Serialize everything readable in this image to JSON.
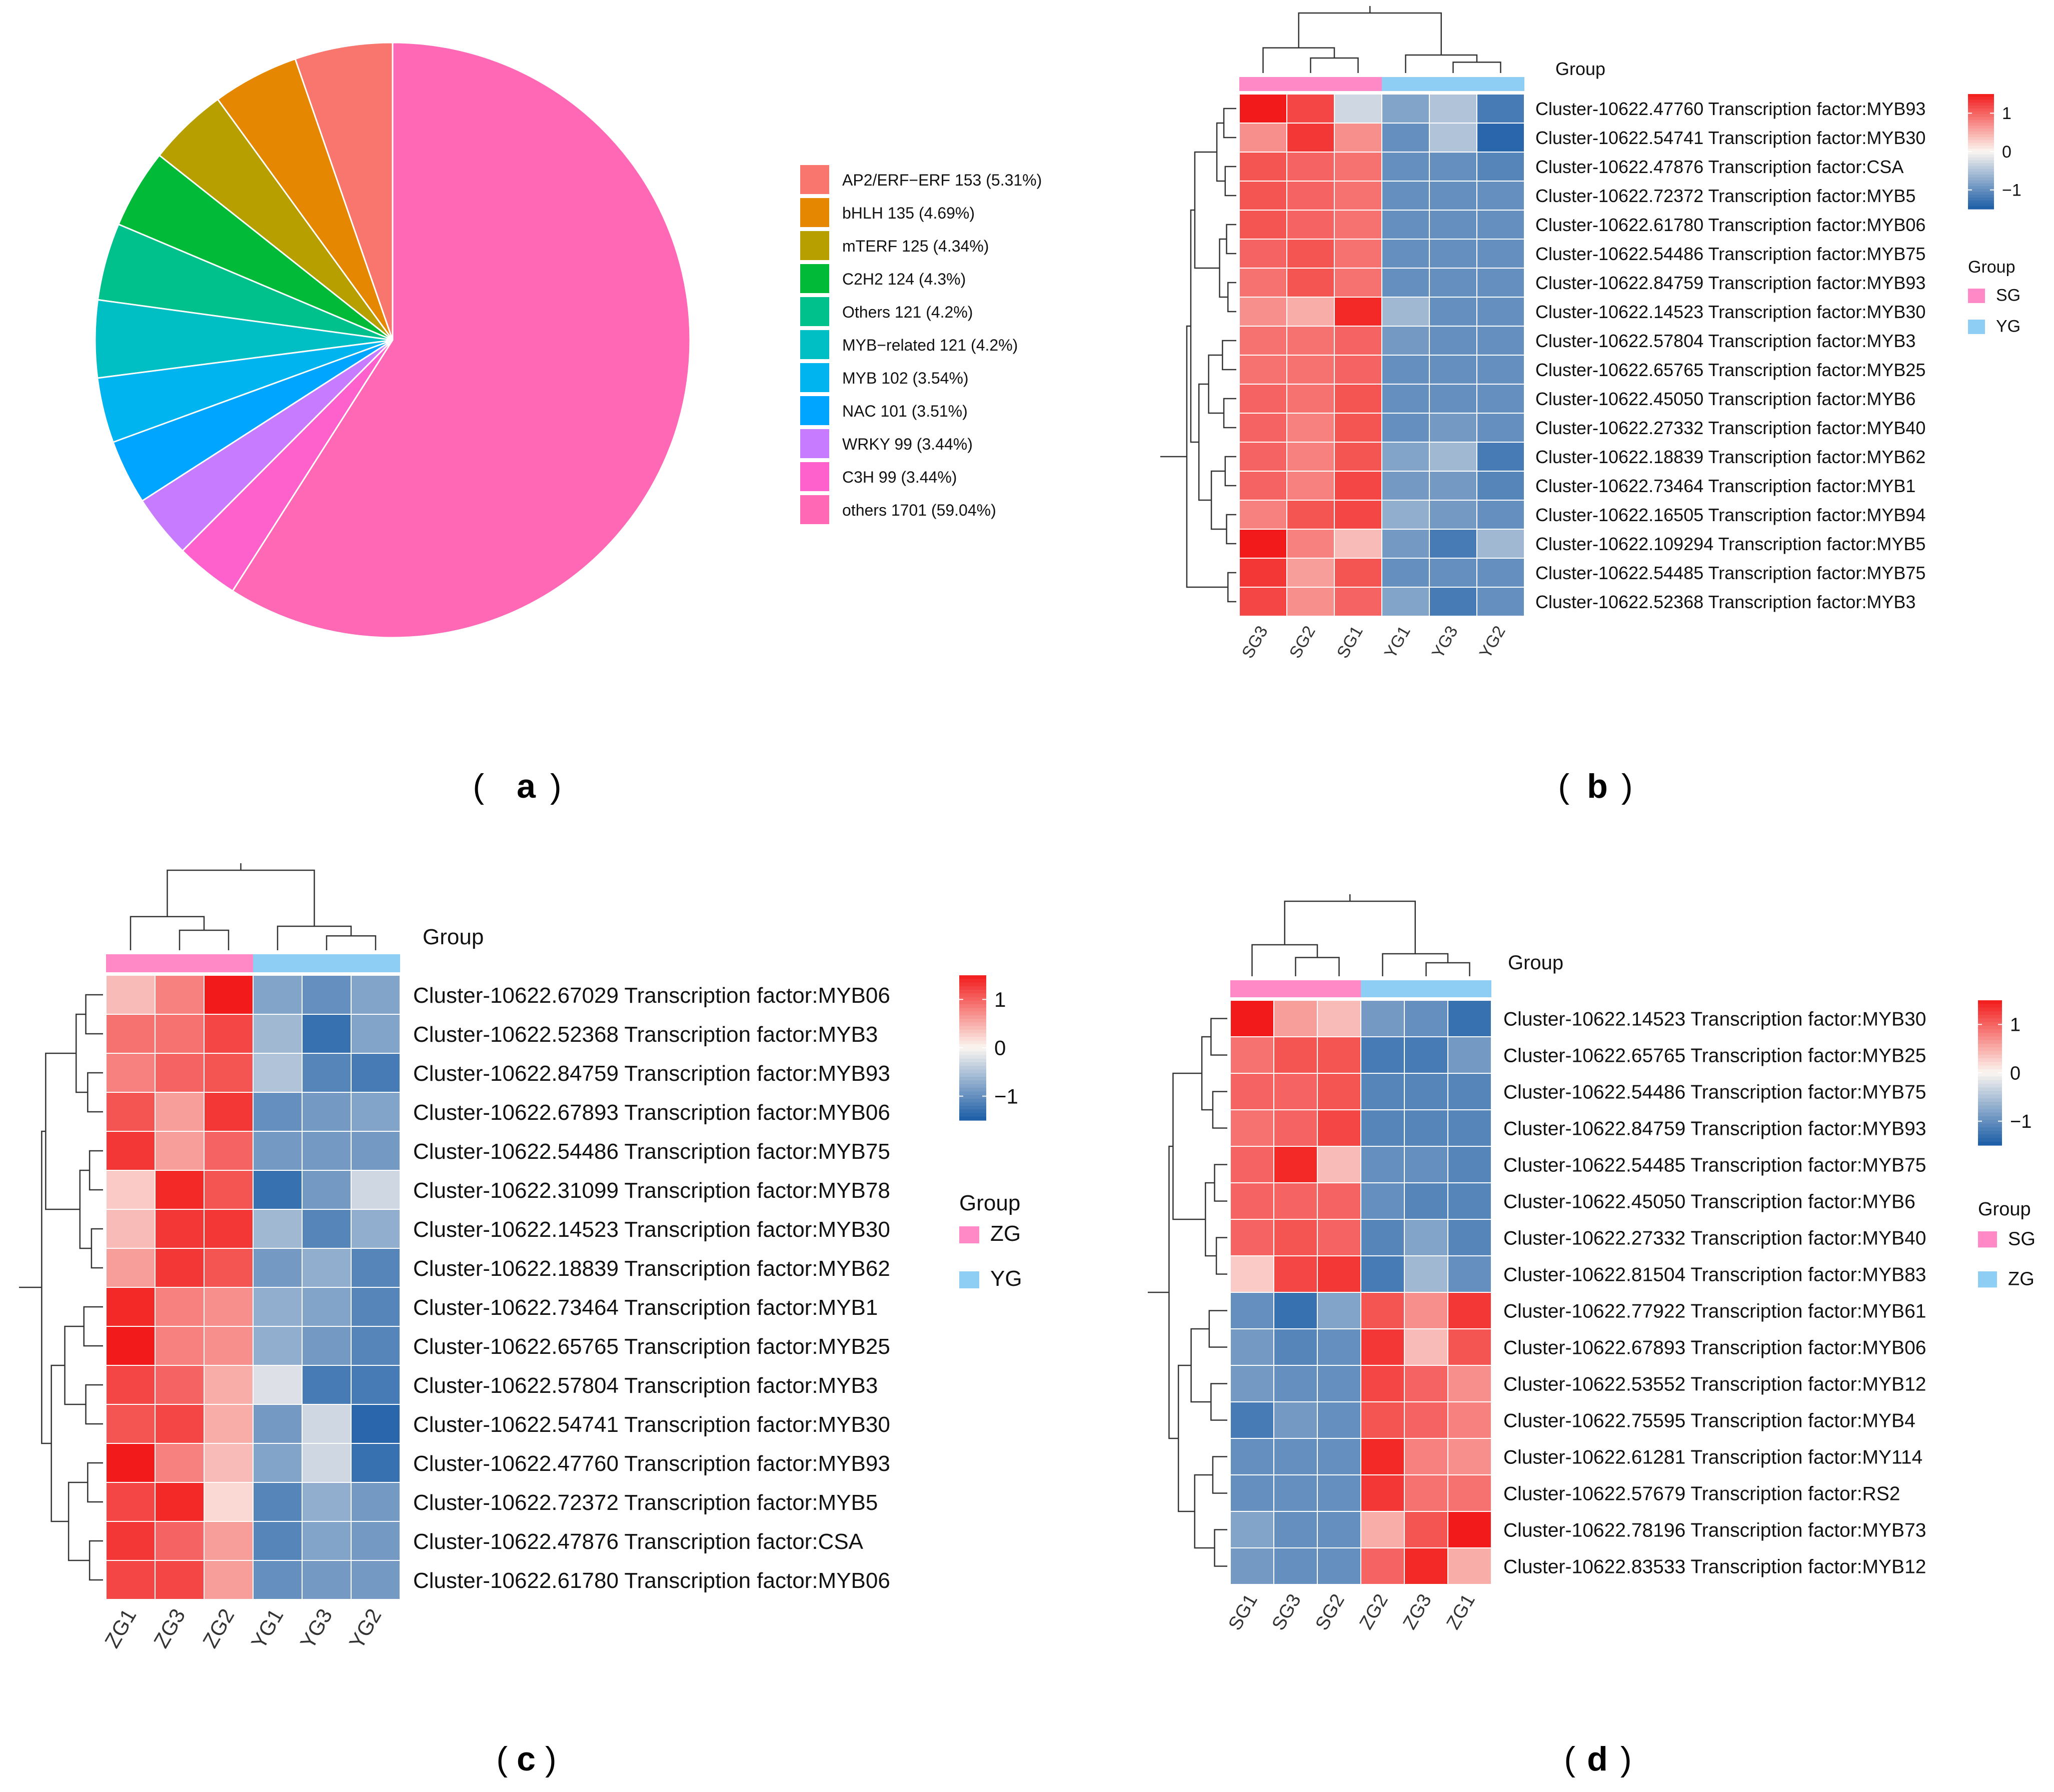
{
  "panels": {
    "a": {
      "label": "a"
    },
    "b": {
      "label": "b"
    },
    "c": {
      "label": "c"
    },
    "d": {
      "label": "d"
    }
  },
  "chart_data": [
    {
      "id": "a",
      "type": "pie",
      "title": "",
      "legend_position": "right",
      "slices": [
        {
          "label": "AP2/ERF−ERF 153 (5.31%)",
          "value": 5.31,
          "color": "#F8766D"
        },
        {
          "label": "bHLH 135 (4.69%)",
          "value": 4.69,
          "color": "#E58700"
        },
        {
          "label": "mTERF 125 (4.34%)",
          "value": 4.34,
          "color": "#B79F00"
        },
        {
          "label": "C2H2 124 (4.3%)",
          "value": 4.3,
          "color": "#00BA38"
        },
        {
          "label": "Others 121 (4.2%)",
          "value": 4.2,
          "color": "#00C08B"
        },
        {
          "label": "MYB−related 121 (4.2%)",
          "value": 4.2,
          "color": "#00BFC4"
        },
        {
          "label": "MYB 102 (3.54%)",
          "value": 3.54,
          "color": "#00B4F0"
        },
        {
          "label": "NAC 101 (3.51%)",
          "value": 3.51,
          "color": "#00A5FF"
        },
        {
          "label": "WRKY 99 (3.44%)",
          "value": 3.44,
          "color": "#C77CFF"
        },
        {
          "label": "C3H 99 (3.44%)",
          "value": 3.44,
          "color": "#FF61CC"
        },
        {
          "label": "others 1701 (59.04%)",
          "value": 59.04,
          "color": "#FF68B4"
        }
      ]
    },
    {
      "id": "b",
      "type": "heatmap",
      "annotation_title": "Group",
      "columns": [
        "SG3",
        "SG2",
        "SG1",
        "YG1",
        "YG3",
        "YG2"
      ],
      "column_groups": [
        "SG",
        "SG",
        "SG",
        "YG",
        "YG",
        "YG"
      ],
      "groups": [
        {
          "name": "SG",
          "color": "#FF88C6"
        },
        {
          "name": "YG",
          "color": "#8ECEF4"
        }
      ],
      "colorbar": {
        "range": [
          -1.5,
          1.5
        ],
        "ticks": [
          1,
          0,
          -1
        ],
        "tick_labels": [
          "1",
          "0",
          "−1"
        ]
      },
      "rows": [
        "Cluster-10622.47760 Transcription factor:MYB93",
        "Cluster-10622.54741 Transcription factor:MYB30",
        "Cluster-10622.47876 Transcription factor:CSA",
        "Cluster-10622.72372 Transcription factor:MYB5",
        "Cluster-10622.61780 Transcription factor:MYB06",
        "Cluster-10622.54486 Transcription factor:MYB75",
        "Cluster-10622.84759 Transcription factor:MYB93",
        "Cluster-10622.14523 Transcription factor:MYB30",
        "Cluster-10622.57804 Transcription factor:MYB3",
        "Cluster-10622.65765 Transcription factor:MYB25",
        "Cluster-10622.45050 Transcription factor:MYB6",
        "Cluster-10622.27332 Transcription factor:MYB40",
        "Cluster-10622.18839 Transcription factor:MYB62",
        "Cluster-10622.73464 Transcription factor:MYB1",
        "Cluster-10622.16505 Transcription factor:MYB94",
        "Cluster-10622.109294 Transcription factor:MYB5",
        "Cluster-10622.54485 Transcription factor:MYB75",
        "Cluster-10622.52368 Transcription factor:MYB3"
      ],
      "values": [
        [
          1.5,
          1.2,
          -0.3,
          -0.8,
          -0.5,
          -1.2
        ],
        [
          0.7,
          1.3,
          0.7,
          -1.0,
          -0.5,
          -1.4
        ],
        [
          1.1,
          1.0,
          0.9,
          -1.0,
          -1.0,
          -1.1
        ],
        [
          1.1,
          1.0,
          0.9,
          -1.0,
          -1.0,
          -1.0
        ],
        [
          1.1,
          1.0,
          0.9,
          -1.0,
          -1.0,
          -1.0
        ],
        [
          1.0,
          1.1,
          0.9,
          -1.0,
          -1.0,
          -1.0
        ],
        [
          0.9,
          1.1,
          0.9,
          -1.0,
          -1.0,
          -1.0
        ],
        [
          0.7,
          0.5,
          1.4,
          -0.6,
          -1.0,
          -1.0
        ],
        [
          0.9,
          0.9,
          1.0,
          -0.9,
          -1.0,
          -1.0
        ],
        [
          0.9,
          0.9,
          1.0,
          -1.0,
          -1.0,
          -1.0
        ],
        [
          1.0,
          0.9,
          1.1,
          -1.0,
          -1.0,
          -1.0
        ],
        [
          1.0,
          0.8,
          1.1,
          -1.0,
          -0.9,
          -1.0
        ],
        [
          1.0,
          0.8,
          1.1,
          -0.8,
          -0.6,
          -1.2
        ],
        [
          1.0,
          0.8,
          1.2,
          -0.9,
          -0.9,
          -1.1
        ],
        [
          0.8,
          1.1,
          1.2,
          -0.7,
          -0.9,
          -1.0
        ],
        [
          1.5,
          0.8,
          0.4,
          -0.9,
          -1.2,
          -0.6
        ],
        [
          1.3,
          0.6,
          1.1,
          -1.0,
          -1.0,
          -1.0
        ],
        [
          1.2,
          0.7,
          1.0,
          -0.8,
          -1.2,
          -1.0
        ]
      ]
    },
    {
      "id": "c",
      "type": "heatmap",
      "annotation_title": "Group",
      "columns": [
        "ZG1",
        "ZG3",
        "ZG2",
        "YG1",
        "YG3",
        "YG2"
      ],
      "column_groups": [
        "ZG",
        "ZG",
        "ZG",
        "YG",
        "YG",
        "YG"
      ],
      "groups": [
        {
          "name": "ZG",
          "color": "#FF88C6"
        },
        {
          "name": "YG",
          "color": "#8ECEF4"
        }
      ],
      "colorbar": {
        "range": [
          -1.5,
          1.5
        ],
        "ticks": [
          1,
          0,
          -1
        ],
        "tick_labels": [
          "1",
          "0",
          "−1"
        ]
      },
      "rows": [
        "Cluster-10622.67029 Transcription factor:MYB06",
        "Cluster-10622.52368 Transcription factor:MYB3",
        "Cluster-10622.84759 Transcription factor:MYB93",
        "Cluster-10622.67893 Transcription factor:MYB06",
        "Cluster-10622.54486 Transcription factor:MYB75",
        "Cluster-10622.31099 Transcription factor:MYB78",
        "Cluster-10622.14523 Transcription factor:MYB30",
        "Cluster-10622.18839 Transcription factor:MYB62",
        "Cluster-10622.73464 Transcription factor:MYB1",
        "Cluster-10622.65765 Transcription factor:MYB25",
        "Cluster-10622.57804 Transcription factor:MYB3",
        "Cluster-10622.54741 Transcription factor:MYB30",
        "Cluster-10622.47760 Transcription factor:MYB93",
        "Cluster-10622.72372 Transcription factor:MYB5",
        "Cluster-10622.47876 Transcription factor:CSA",
        "Cluster-10622.61780 Transcription factor:MYB06"
      ],
      "values": [
        [
          0.4,
          0.8,
          1.5,
          -0.8,
          -1.0,
          -0.8
        ],
        [
          0.9,
          0.9,
          1.2,
          -0.6,
          -1.3,
          -0.8
        ],
        [
          0.8,
          1.0,
          1.1,
          -0.5,
          -1.1,
          -1.2
        ],
        [
          1.1,
          0.6,
          1.3,
          -1.0,
          -0.9,
          -0.8
        ],
        [
          1.3,
          0.6,
          1.0,
          -0.9,
          -0.9,
          -0.9
        ],
        [
          0.3,
          1.4,
          1.1,
          -1.3,
          -0.9,
          -0.3
        ],
        [
          0.4,
          1.3,
          1.3,
          -0.6,
          -1.1,
          -0.7
        ],
        [
          0.6,
          1.3,
          1.1,
          -0.9,
          -0.7,
          -1.1
        ],
        [
          1.4,
          0.8,
          0.7,
          -0.7,
          -0.8,
          -1.1
        ],
        [
          1.5,
          0.8,
          0.7,
          -0.7,
          -0.9,
          -1.1
        ],
        [
          1.2,
          1.0,
          0.5,
          -0.2,
          -1.2,
          -1.2
        ],
        [
          1.1,
          1.2,
          0.5,
          -0.9,
          -0.3,
          -1.4
        ],
        [
          1.6,
          0.8,
          0.4,
          -0.8,
          -0.3,
          -1.3
        ],
        [
          1.2,
          1.4,
          0.2,
          -1.1,
          -0.7,
          -0.9
        ],
        [
          1.3,
          1.0,
          0.6,
          -1.1,
          -0.8,
          -0.9
        ],
        [
          1.2,
          1.2,
          0.6,
          -1.0,
          -0.9,
          -0.9
        ]
      ]
    },
    {
      "id": "d",
      "type": "heatmap",
      "annotation_title": "Group",
      "columns": [
        "SG1",
        "SG3",
        "SG2",
        "ZG2",
        "ZG3",
        "ZG1"
      ],
      "column_groups": [
        "SG",
        "SG",
        "SG",
        "ZG",
        "ZG",
        "ZG"
      ],
      "groups": [
        {
          "name": "SG",
          "color": "#FF88C6"
        },
        {
          "name": "ZG",
          "color": "#8ECEF4"
        }
      ],
      "colorbar": {
        "range": [
          -1.5,
          1.5
        ],
        "ticks": [
          1,
          0,
          -1
        ],
        "tick_labels": [
          "1",
          "0",
          "−1"
        ]
      },
      "rows": [
        "Cluster-10622.14523 Transcription factor:MYB30",
        "Cluster-10622.65765 Transcription factor:MYB25",
        "Cluster-10622.54486 Transcription factor:MYB75",
        "Cluster-10622.84759 Transcription factor:MYB93",
        "Cluster-10622.54485 Transcription factor:MYB75",
        "Cluster-10622.45050 Transcription factor:MYB6",
        "Cluster-10622.27332 Transcription factor:MYB40",
        "Cluster-10622.81504 Transcription factor:MYB83",
        "Cluster-10622.77922 Transcription factor:MYB61",
        "Cluster-10622.67893 Transcription factor:MYB06",
        "Cluster-10622.53552 Transcription factor:MYB12",
        "Cluster-10622.75595 Transcription factor:MYB4",
        "Cluster-10622.61281 Transcription factor:MY114",
        "Cluster-10622.57679 Transcription factor:RS2",
        "Cluster-10622.78196 Transcription factor:MYB73",
        "Cluster-10622.83533 Transcription factor:MYB12"
      ],
      "values": [
        [
          1.5,
          0.6,
          0.4,
          -0.9,
          -1.0,
          -1.3
        ],
        [
          0.9,
          1.1,
          1.1,
          -1.2,
          -1.2,
          -0.9
        ],
        [
          1.0,
          1.0,
          1.1,
          -1.1,
          -1.1,
          -1.1
        ],
        [
          0.9,
          1.0,
          1.2,
          -1.1,
          -1.1,
          -1.1
        ],
        [
          1.0,
          1.4,
          0.4,
          -1.0,
          -1.0,
          -1.1
        ],
        [
          1.0,
          1.0,
          1.0,
          -1.0,
          -1.1,
          -1.1
        ],
        [
          1.0,
          1.1,
          1.0,
          -1.1,
          -0.8,
          -1.1
        ],
        [
          0.3,
          1.2,
          1.3,
          -1.2,
          -0.6,
          -1.0
        ],
        [
          -1.0,
          -1.3,
          -0.8,
          1.1,
          0.7,
          1.3
        ],
        [
          -0.9,
          -1.1,
          -1.0,
          1.3,
          0.4,
          1.1
        ],
        [
          -0.9,
          -1.0,
          -1.0,
          1.2,
          1.0,
          0.7
        ],
        [
          -1.2,
          -0.9,
          -1.0,
          1.1,
          1.0,
          0.8
        ],
        [
          -1.0,
          -1.0,
          -1.0,
          1.4,
          0.8,
          0.7
        ],
        [
          -1.0,
          -1.0,
          -1.0,
          1.3,
          0.9,
          0.9
        ],
        [
          -0.8,
          -1.0,
          -1.0,
          0.5,
          1.1,
          1.5
        ],
        [
          -0.9,
          -1.0,
          -1.0,
          1.0,
          1.4,
          0.5
        ]
      ]
    }
  ]
}
